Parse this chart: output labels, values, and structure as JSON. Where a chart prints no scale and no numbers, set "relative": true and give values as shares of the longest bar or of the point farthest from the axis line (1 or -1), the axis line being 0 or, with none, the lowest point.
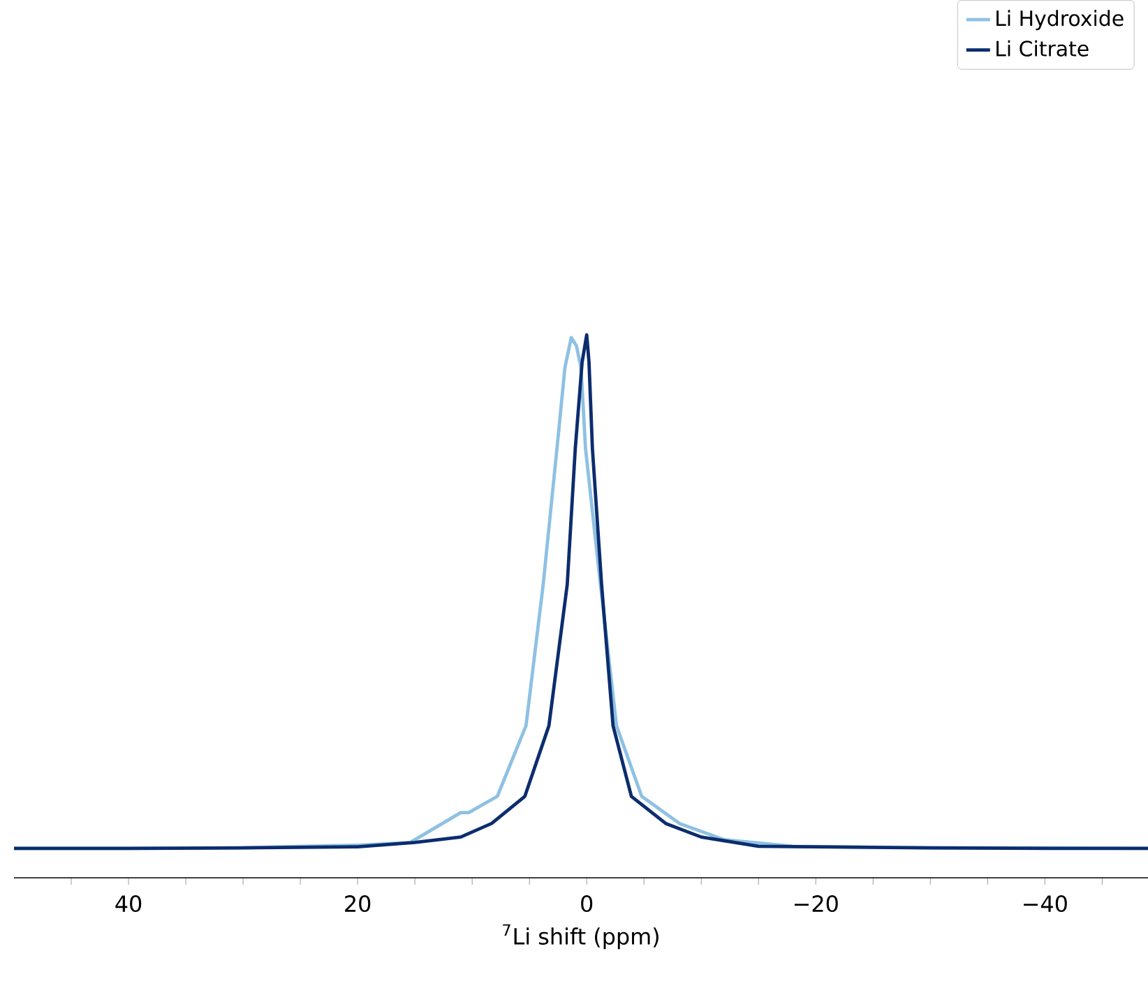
{
  "chart_data": {
    "type": "line",
    "relative": true,
    "xlabel": "$^{7}$Li shift (ppm)",
    "xlim": [
      50,
      -49
    ],
    "xticks": [
      {
        "value": 45,
        "label": null
      },
      {
        "value": 40,
        "label": "40"
      },
      {
        "value": 35,
        "label": null
      },
      {
        "value": 30,
        "label": null
      },
      {
        "value": 25,
        "label": null
      },
      {
        "value": 20,
        "label": "20"
      },
      {
        "value": 15,
        "label": null
      },
      {
        "value": 10,
        "label": null
      },
      {
        "value": 5,
        "label": null
      },
      {
        "value": 0,
        "label": "0"
      },
      {
        "value": -5,
        "label": null
      },
      {
        "value": -10,
        "label": null
      },
      {
        "value": -15,
        "label": null
      },
      {
        "value": -20,
        "label": "−20"
      },
      {
        "value": -25,
        "label": null
      },
      {
        "value": -30,
        "label": null
      },
      {
        "value": -35,
        "label": null
      },
      {
        "value": -40,
        "label": "−40"
      },
      {
        "value": -45,
        "label": null
      }
    ],
    "legend": "top right",
    "grid": false,
    "marker": "none",
    "line_style": "solid",
    "series": [
      {
        "name": "Li Hydroxide",
        "color": "#8ec1e3",
        "x": [
          50,
          40,
          30,
          25,
          20,
          15.4,
          11,
          10.3,
          7.8,
          5.3,
          3.8,
          2.6,
          1.9,
          1.35,
          0.9,
          0.5,
          0.1,
          -1.2,
          -2.6,
          -4.8,
          -8.1,
          -12,
          -18,
          -30,
          -40,
          -49
        ],
        "values": [
          0.054,
          0.054,
          0.055,
          0.058,
          0.06,
          0.065,
          0.12,
          0.12,
          0.15,
          0.28,
          0.54,
          0.79,
          0.94,
          0.995,
          0.98,
          0.94,
          0.79,
          0.54,
          0.28,
          0.15,
          0.1,
          0.07,
          0.058,
          0.055,
          0.055,
          0.054
        ]
      },
      {
        "name": "Li Citrate",
        "color": "#0c2d6e",
        "x": [
          50,
          40,
          30,
          20,
          15,
          11,
          8.3,
          5.4,
          3.3,
          1.7,
          1.0,
          0.4,
          0,
          -0.2,
          -0.5,
          -1.3,
          -2.3,
          -3.9,
          -6.9,
          -10,
          -15,
          -30,
          -40,
          -49
        ],
        "values": [
          0.054,
          0.054,
          0.055,
          0.057,
          0.065,
          0.075,
          0.1,
          0.15,
          0.28,
          0.54,
          0.79,
          0.95,
          1.0,
          0.95,
          0.79,
          0.54,
          0.28,
          0.15,
          0.1,
          0.075,
          0.058,
          0.055,
          0.054,
          0.054
        ]
      }
    ]
  }
}
